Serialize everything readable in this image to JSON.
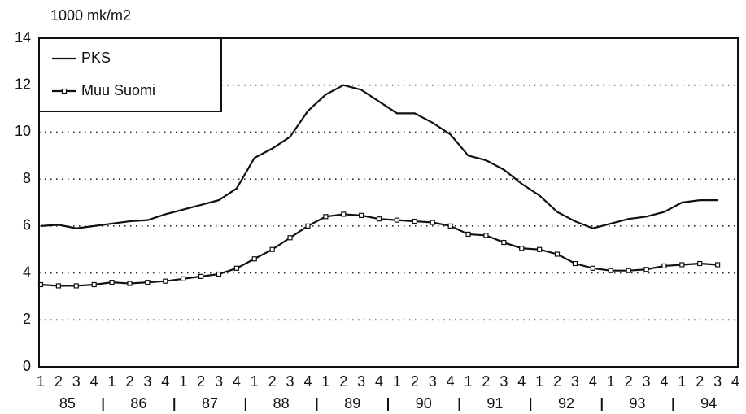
{
  "chart_data": {
    "type": "line",
    "y_axis_label": "1000 mk/m2",
    "categories": [
      "1",
      "2",
      "3",
      "4",
      "1",
      "2",
      "3",
      "4",
      "1",
      "2",
      "3",
      "4",
      "1",
      "2",
      "3",
      "4",
      "1",
      "2",
      "3",
      "4",
      "1",
      "2",
      "3",
      "4",
      "1",
      "2",
      "3",
      "4",
      "1",
      "2",
      "3",
      "4",
      "1",
      "2",
      "3",
      "4",
      "1",
      "2",
      "3",
      "4"
    ],
    "years": [
      "85",
      "86",
      "87",
      "88",
      "89",
      "90",
      "91",
      "92",
      "93",
      "94"
    ],
    "series": [
      {
        "name": "PKS",
        "color": "#111111",
        "marker": "none",
        "values": [
          6.0,
          6.05,
          5.9,
          6.0,
          6.1,
          6.2,
          6.25,
          6.5,
          6.7,
          6.9,
          7.1,
          7.6,
          8.9,
          9.3,
          9.8,
          10.9,
          11.6,
          12.0,
          11.8,
          11.3,
          10.8,
          10.8,
          10.4,
          9.9,
          9.0,
          8.8,
          8.4,
          7.8,
          7.3,
          6.6,
          6.2,
          5.9,
          6.1,
          6.3,
          6.4,
          6.6,
          7.0,
          7.1,
          7.1,
          null
        ]
      },
      {
        "name": "Muu Suomi",
        "color": "#111111",
        "marker": "square",
        "values": [
          3.5,
          3.45,
          3.45,
          3.5,
          3.6,
          3.55,
          3.6,
          3.65,
          3.75,
          3.85,
          3.95,
          4.2,
          4.6,
          5.0,
          5.5,
          6.0,
          6.4,
          6.5,
          6.45,
          6.3,
          6.25,
          6.2,
          6.15,
          6.0,
          5.65,
          5.6,
          5.3,
          5.05,
          5.0,
          4.8,
          4.4,
          4.2,
          4.1,
          4.1,
          4.15,
          4.3,
          4.35,
          4.4,
          4.35,
          null
        ]
      }
    ],
    "ylim": [
      0,
      14
    ],
    "yticks": [
      0,
      2,
      4,
      6,
      8,
      10,
      12,
      14
    ],
    "grid": true,
    "legend": "top-left"
  }
}
